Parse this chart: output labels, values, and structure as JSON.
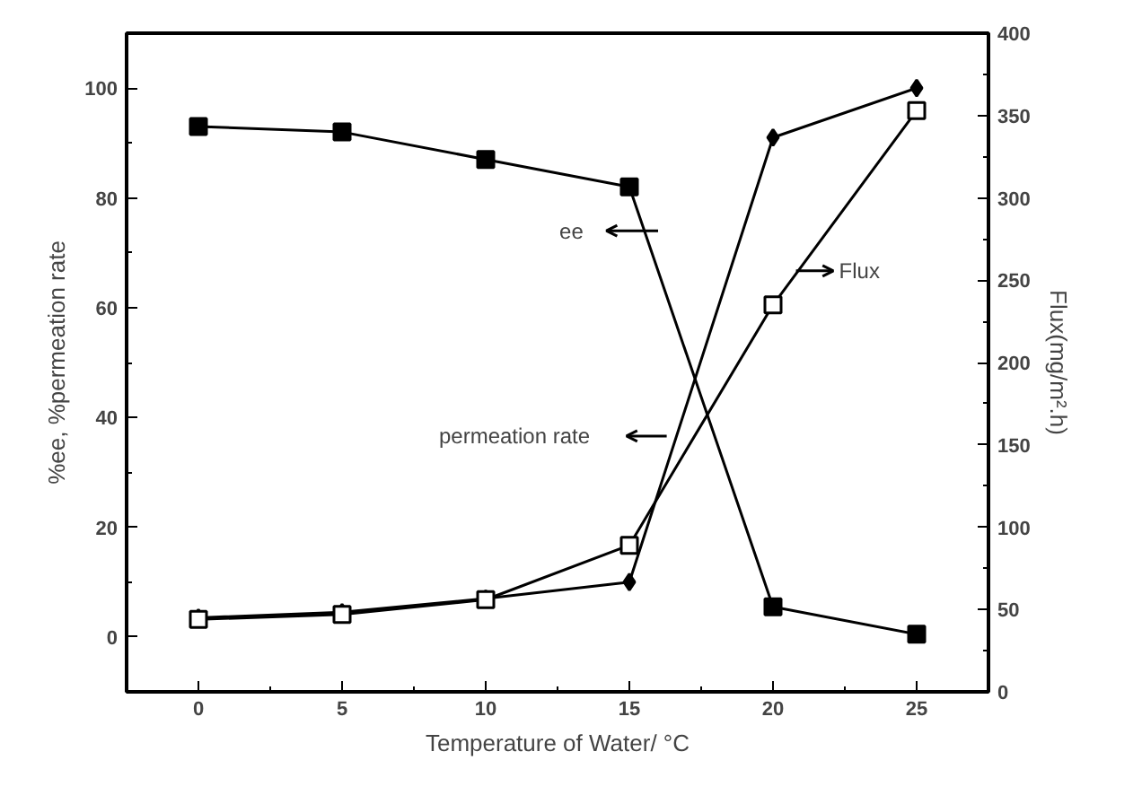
{
  "chart_data": {
    "type": "line",
    "xlabel": "Temperature of Water/ °C",
    "ylabel": "%ee, %permeation rate",
    "y2label": "Flux(mg/m².h)",
    "x": [
      0,
      5,
      10,
      15,
      20,
      25
    ],
    "series": [
      {
        "name": "ee",
        "color": "#000000",
        "marker": "square",
        "values": [
          93,
          92,
          87,
          82,
          5.5,
          0.5
        ]
      },
      {
        "name": "permeation rate",
        "color": "#000000",
        "marker": "diamond",
        "values": [
          3.5,
          4.5,
          7,
          10,
          91,
          100
        ]
      },
      {
        "name": "Flux",
        "color": "#000000",
        "marker": "square",
        "axis": "y2",
        "values": [
          44,
          47,
          56,
          89,
          235,
          353
        ]
      }
    ],
    "xlim": [
      -2.5,
      27.5
    ],
    "xticks": [
      0,
      5,
      10,
      15,
      20,
      25
    ],
    "ylim": [
      -10,
      110
    ],
    "yticks": [
      0,
      20,
      40,
      60,
      80,
      100
    ],
    "y2lim": [
      0,
      400
    ],
    "y2ticks": [
      0,
      50,
      100,
      150,
      200,
      250,
      300,
      350,
      400
    ],
    "grid": false,
    "legend": "center"
  }
}
